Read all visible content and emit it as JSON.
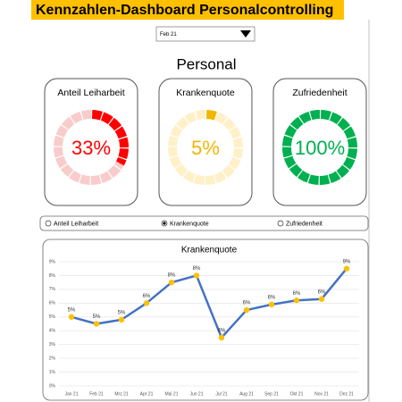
{
  "header": {
    "title": "Kennzahlen-Dashboard Personalcontrolling"
  },
  "filter": {
    "selected": "Feb 21"
  },
  "section_title": "Personal",
  "kpis": [
    {
      "title": "Anteil Leiharbeit",
      "value": 33,
      "value_label": "33%",
      "color": "#ff0000",
      "track_color": "#f9cccc"
    },
    {
      "title": "Krankenquote",
      "value": 5,
      "value_label": "5%",
      "color": "#f2b600",
      "track_color": "#fff0c8"
    },
    {
      "title": "Zufriedenheit",
      "value": 100,
      "value_label": "100%",
      "color": "#00b050",
      "track_color": "#c8ecd6"
    }
  ],
  "radio": {
    "options": [
      "Anteil Leiharbeit",
      "Krankenquote",
      "Zufriedenheit"
    ],
    "selected": 1
  },
  "chart_data": {
    "type": "line",
    "title": "Krankenquote",
    "categories": [
      "Jan 21",
      "Feb 21",
      "Mrz 21",
      "Apr 21",
      "Mai 21",
      "Jun 21",
      "Jul 21",
      "Aug 21",
      "Sep 21",
      "Okt 21",
      "Nov 21",
      "Dez 21"
    ],
    "series": [
      {
        "color": "#4472c4",
        "marker_color": "#ffc000",
        "values": [
          5.0,
          4.5,
          4.8,
          6.0,
          7.5,
          8.0,
          3.5,
          5.5,
          5.9,
          6.2,
          6.3,
          8.5
        ],
        "value_labels": [
          "5%",
          "5%",
          "5%",
          "6%",
          "8%",
          "8%",
          "4%",
          "6%",
          "6%",
          "6%",
          "6%",
          "9%"
        ]
      }
    ],
    "ylim": [
      0,
      9
    ],
    "yticks": [
      {
        "value": 0,
        "label": "0%"
      },
      {
        "value": 1,
        "label": "1%"
      },
      {
        "value": 2,
        "label": "2%"
      },
      {
        "value": 3,
        "label": "3%"
      },
      {
        "value": 4,
        "label": "4%"
      },
      {
        "value": 5,
        "label": "5%"
      },
      {
        "value": 6,
        "label": "6%"
      },
      {
        "value": 7,
        "label": "7%"
      },
      {
        "value": 8,
        "label": "8%"
      },
      {
        "value": 9,
        "label": "9%"
      }
    ],
    "grid": true
  }
}
